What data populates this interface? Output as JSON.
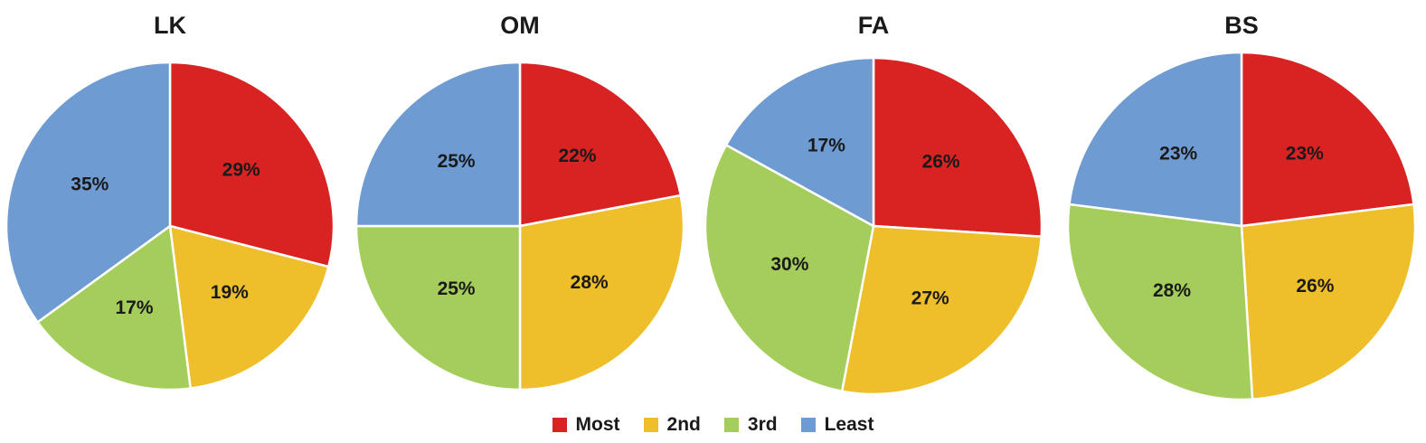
{
  "colors": {
    "Most": "#d92222",
    "2nd": "#efbe2b",
    "3rd": "#a4cd5b",
    "Least": "#6e9bd2"
  },
  "legend": {
    "items": [
      {
        "key": "Most",
        "label": "Most"
      },
      {
        "key": "2nd",
        "label": "2nd"
      },
      {
        "key": "3rd",
        "label": "3rd"
      },
      {
        "key": "Least",
        "label": "Least"
      }
    ]
  },
  "chart_data": [
    {
      "type": "pie",
      "title": "LK",
      "categories": [
        "Most",
        "2nd",
        "3rd",
        "Least"
      ],
      "values": [
        29,
        19,
        17,
        35
      ],
      "labels": [
        "29%",
        "19%",
        "17%",
        "35%"
      ]
    },
    {
      "type": "pie",
      "title": "OM",
      "categories": [
        "Most",
        "2nd",
        "3rd",
        "Least"
      ],
      "values": [
        22,
        28,
        25,
        25
      ],
      "labels": [
        "22%",
        "28%",
        "25%",
        "25%"
      ]
    },
    {
      "type": "pie",
      "title": "FA",
      "categories": [
        "Most",
        "2nd",
        "3rd",
        "Least"
      ],
      "values": [
        26,
        27,
        30,
        17
      ],
      "labels": [
        "26%",
        "27%",
        "30%",
        "17%"
      ]
    },
    {
      "type": "pie",
      "title": "BS",
      "categories": [
        "Most",
        "2nd",
        "3rd",
        "Least"
      ],
      "values": [
        23,
        26,
        28,
        23
      ],
      "labels": [
        "23%",
        "26%",
        "28%",
        "23%"
      ]
    }
  ]
}
